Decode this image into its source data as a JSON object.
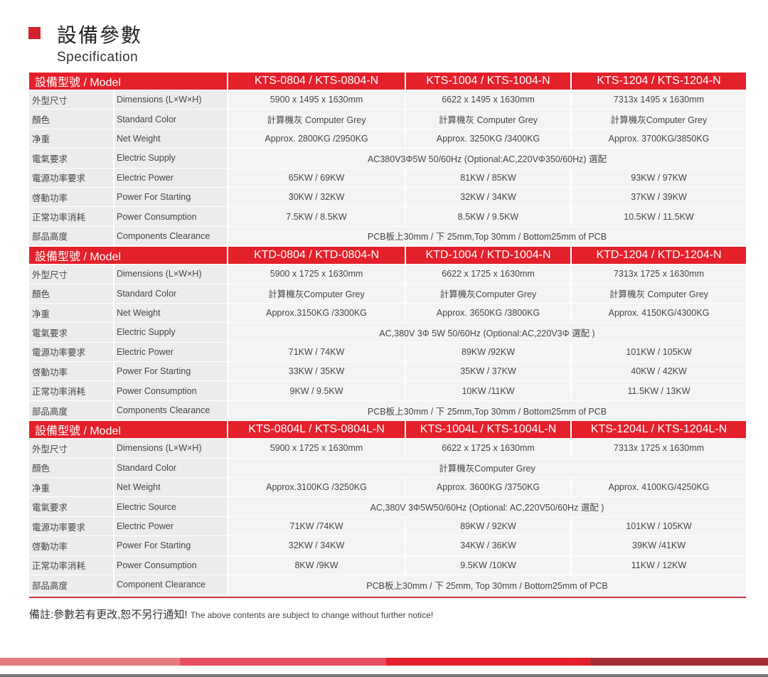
{
  "page": {
    "title_zh": "設備參數",
    "title_en": "Specification"
  },
  "sections": [
    {
      "header": "設備型號 / Model",
      "models": [
        "KTS-0804 / KTS-0804-N",
        "KTS-1004 / KTS-1004-N",
        "KTS-1204 / KTS-1204-N"
      ],
      "rows": [
        {
          "zh": "外型尺寸",
          "en": "Dimensions (L×W×H)",
          "values": [
            "5900 x 1495 x 1630mm",
            "6622 x 1495 x 1630mm",
            "7313x 1495 x 1630mm"
          ]
        },
        {
          "zh": "顏色",
          "en": "Standard Color",
          "values": [
            "計算機灰 Computer Grey",
            "計算機灰 Computer Grey",
            "計算機灰Computer Grey"
          ]
        },
        {
          "zh": "净重",
          "en": "Net Weight",
          "values": [
            "Approx. 2800KG /2950KG",
            "Approx. 3250KG /3400KG",
            "Approx. 3700KG/3850KG"
          ]
        },
        {
          "zh": "電氣要求",
          "en": "Electric Supply",
          "values": [
            "AC380V3Φ5W 50/60Hz (Optional:AC,220VΦ350/60Hz) 選配"
          ]
        },
        {
          "zh": "電源功率要求",
          "en": "Electric Power",
          "values": [
            "65KW / 69KW",
            "81KW / 85KW",
            "93KW / 97KW"
          ]
        },
        {
          "zh": "啓動功率",
          "en": "Power For Starting",
          "values": [
            "30KW / 32KW",
            "32KW / 34KW",
            "37KW / 39KW"
          ]
        },
        {
          "zh": "正常功率消耗",
          "en": "Power Consumption",
          "values": [
            "7.5KW / 8.5KW",
            "8.5KW / 9.5KW",
            "10.5KW / 11.5KW"
          ]
        },
        {
          "zh": "部品高度",
          "en": "Components Clearance",
          "values": [
            "PCB板上30mm /   下 25mm,Top 30mm / Bottom25mm of PCB"
          ]
        }
      ]
    },
    {
      "header": "設備型號 / Model",
      "models": [
        "KTD-0804 / KTD-0804-N",
        "KTD-1004 / KTD-1004-N",
        "KTD-1204 / KTD-1204-N"
      ],
      "rows": [
        {
          "zh": "外型尺寸",
          "en": "Dimensions (L×W×H)",
          "values": [
            "5900 x 1725 x 1630mm",
            "6622 x 1725 x 1630mm",
            "7313x 1725 x 1630mm"
          ]
        },
        {
          "zh": "顏色",
          "en": "Standard Color",
          "values": [
            "計算機灰Computer Grey",
            "計算機灰Computer Grey",
            "計算機灰 Computer Grey"
          ]
        },
        {
          "zh": "净重",
          "en": "Net Weight",
          "values": [
            "Approx.3150KG /3300KG",
            "Approx. 3650KG /3800KG",
            "Approx. 4150KG/4300KG"
          ]
        },
        {
          "zh": "電氣要求",
          "en": "Electric Supply",
          "values": [
            "AC,380V 3Φ 5W 50/60Hz (Optional:AC,220V3Φ  選配 )"
          ]
        },
        {
          "zh": "電源功率要求",
          "en": "Electric Power",
          "values": [
            "71KW / 74KW",
            "89KW /92KW",
            "101KW / 105KW"
          ]
        },
        {
          "zh": "啓動功率",
          "en": "Power For Starting",
          "values": [
            "33KW / 35KW",
            "35KW / 37KW",
            "40KW / 42KW"
          ]
        },
        {
          "zh": "正常功率消耗",
          "en": "Power Consumption",
          "values": [
            "9KW / 9.5KW",
            "10KW /11KW",
            "11.5KW / 13KW"
          ]
        },
        {
          "zh": "部品高度",
          "en": "Components Clearance",
          "values": [
            "PCB板上30mm /   下 25mm,Top 30mm / Bottom25mm of PCB"
          ]
        }
      ]
    },
    {
      "header": "設備型號 / Model",
      "models": [
        "KTS-0804L / KTS-0804L-N",
        "KTS-1004L / KTS-1004L-N",
        "KTS-1204L / KTS-1204L-N"
      ],
      "rows": [
        {
          "zh": "外型尺寸",
          "en": "Dimensions (L×W×H)",
          "values": [
            "5900 x 1725 x 1630mm",
            "6622 x 1725 x 1630mm",
            "7313x 1725 x 1630mm"
          ]
        },
        {
          "zh": "顏色",
          "en": "Standard Color",
          "values": [
            "計算機灰Computer Grey"
          ]
        },
        {
          "zh": "净重",
          "en": "Net Weight",
          "values": [
            "Approx.3100KG /3250KG",
            "Approx. 3600KG /3750KG",
            "Approx. 4100KG/4250KG"
          ]
        },
        {
          "zh": "電氣要求",
          "en": "Electric Source",
          "values": [
            "AC,380V 3Φ5W50/60Hz (Optional: AC,220V50/60Hz  選配 )"
          ]
        },
        {
          "zh": "電源功率要求",
          "en": "Electric Power",
          "values": [
            "71KW /74KW",
            "89KW / 92KW",
            "101KW / 105KW"
          ]
        },
        {
          "zh": "啓動功率",
          "en": "Power For Starting",
          "values": [
            "32KW / 34KW",
            "34KW / 36KW",
            "39KW /41KW"
          ]
        },
        {
          "zh": "正常功率消耗",
          "en": "Power Consumption",
          "values": [
            "8KW /9KW",
            "9.5KW /10KW",
            "11KW / 12KW"
          ]
        },
        {
          "zh": "部品高度",
          "en": "Component Clearance",
          "values": [
            "PCB板上30mm / 下  25mm, Top 30mm / Bottom25mm of PCB"
          ]
        }
      ]
    }
  ],
  "note": {
    "zh": "備註:參數若有更改,恕不另行通知!",
    "en": "The above contents are subject to change without further notice!"
  },
  "colors": {
    "accent": "#e4202b",
    "bars": [
      "#e57b7b",
      "#ea4f5f",
      "#e5202a",
      "#a82d33"
    ]
  }
}
